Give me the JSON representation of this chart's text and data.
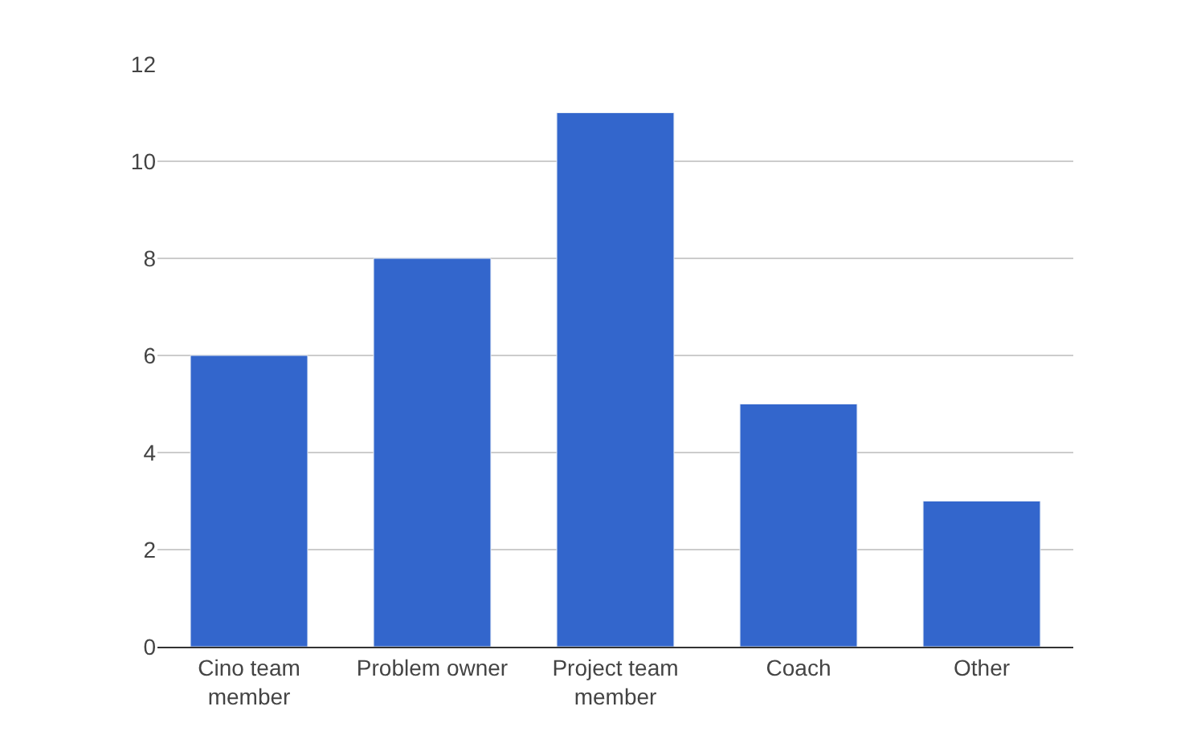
{
  "chart_data": {
    "type": "bar",
    "categories": [
      "Cino team member",
      "Problem owner",
      "Project team member",
      "Coach",
      "Other"
    ],
    "series": [
      {
        "color": "#3366cc",
        "values": [
          6,
          8,
          11,
          5,
          3
        ]
      }
    ],
    "ylim": [
      0,
      12
    ],
    "yticks": [
      0,
      2,
      4,
      6,
      8,
      10,
      12
    ],
    "grid": "y"
  }
}
